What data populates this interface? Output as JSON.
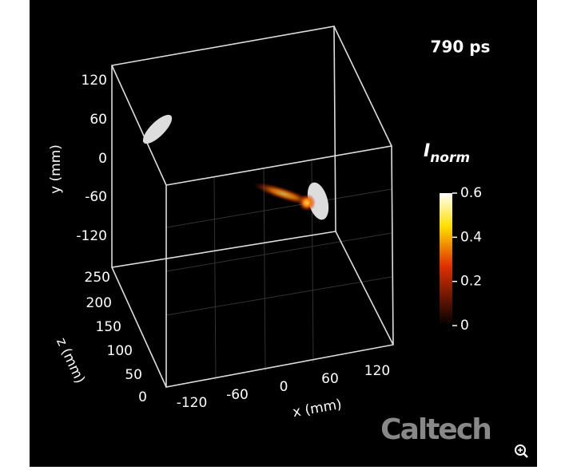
{
  "time_label": "790 ps",
  "y_axis": {
    "label": "y (mm)",
    "ticks": [
      120,
      60,
      0,
      -60,
      -120
    ]
  },
  "z_axis": {
    "label": "z (mm)",
    "ticks": [
      250,
      200,
      150,
      100,
      50,
      0
    ]
  },
  "x_axis": {
    "label": "x (mm)",
    "ticks": [
      -120,
      -60,
      0,
      60,
      120
    ]
  },
  "colorbar": {
    "title": "I",
    "subscript": "norm",
    "ticks": [
      0.6,
      0.4,
      0.2,
      0
    ]
  },
  "logo": "Caltech"
}
